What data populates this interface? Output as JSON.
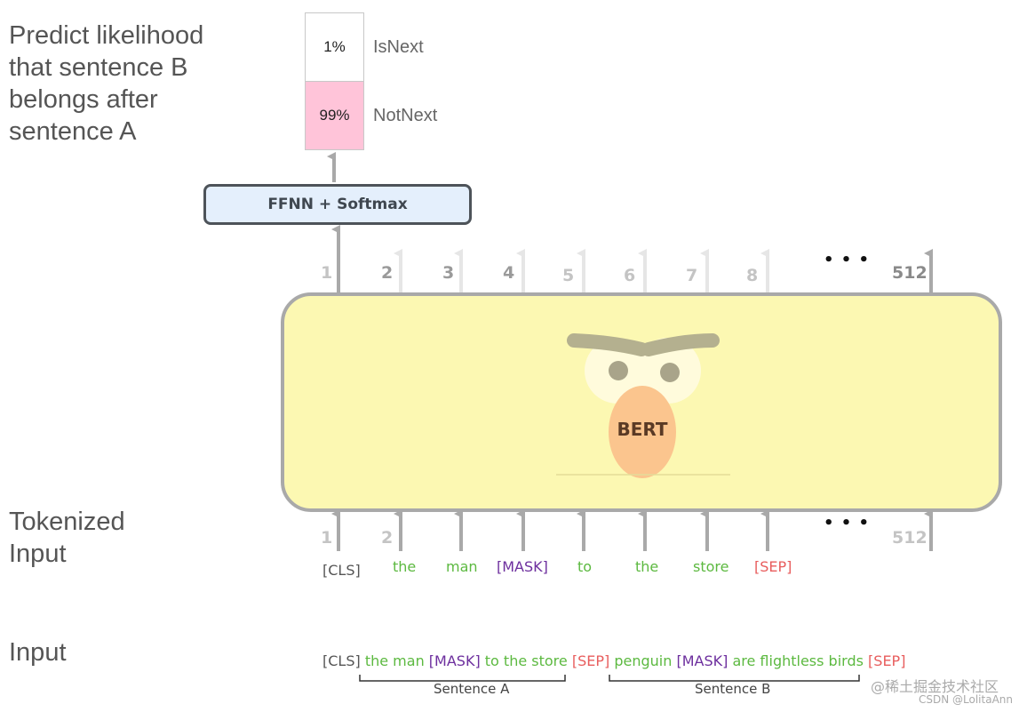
{
  "left_labels": {
    "predict": "Predict likelihood that sentence B belongs after sentence A",
    "tokenized": "Tokenized Input",
    "input": "Input"
  },
  "output": {
    "isnext_pct": "1%",
    "isnext_label": "IsNext",
    "notnext_pct": "99%",
    "notnext_label": "NotNext",
    "colors": {
      "notnext_fill": "#ffc4d9",
      "isnext_fill": "#ffffff"
    }
  },
  "ffnn_label": "FFNN + Softmax",
  "bert": {
    "label": "BERT",
    "fill": "#fcf8b2",
    "beak": "#fbc58e"
  },
  "positions_top": [
    "1",
    "2",
    "3",
    "4",
    "5",
    "6",
    "7",
    "8",
    "• • •",
    "512"
  ],
  "positions_bottom": [
    "1",
    "2",
    "• • •",
    "512"
  ],
  "tokens": [
    {
      "text": "[CLS]",
      "kind": "special"
    },
    {
      "text": "the",
      "kind": "word"
    },
    {
      "text": "man",
      "kind": "word"
    },
    {
      "text": "[MASK]",
      "kind": "mask"
    },
    {
      "text": "to",
      "kind": "word"
    },
    {
      "text": "the",
      "kind": "word"
    },
    {
      "text": "store",
      "kind": "word"
    },
    {
      "text": "[SEP]",
      "kind": "sep"
    }
  ],
  "input_sequence": [
    {
      "text": "[CLS]",
      "kind": "special"
    },
    {
      "text": "the man",
      "kind": "word"
    },
    {
      "text": "[MASK]",
      "kind": "mask"
    },
    {
      "text": "to the store",
      "kind": "word"
    },
    {
      "text": "[SEP]",
      "kind": "sep"
    },
    {
      "text": "penguin",
      "kind": "word"
    },
    {
      "text": "[MASK]",
      "kind": "mask"
    },
    {
      "text": "are flightless birds",
      "kind": "word"
    },
    {
      "text": "[SEP]",
      "kind": "sep"
    }
  ],
  "sentence_labels": {
    "a": "Sentence A",
    "b": "Sentence B"
  },
  "watermark": {
    "line1": "@稀土掘金技术社区",
    "line2": "CSDN @LolitaAnn"
  },
  "colors": {
    "word": "#5cb940",
    "mask": "#6d2f9e",
    "sep": "#e85d5d",
    "special": "#555555",
    "arrow": "#a9a9a9"
  }
}
